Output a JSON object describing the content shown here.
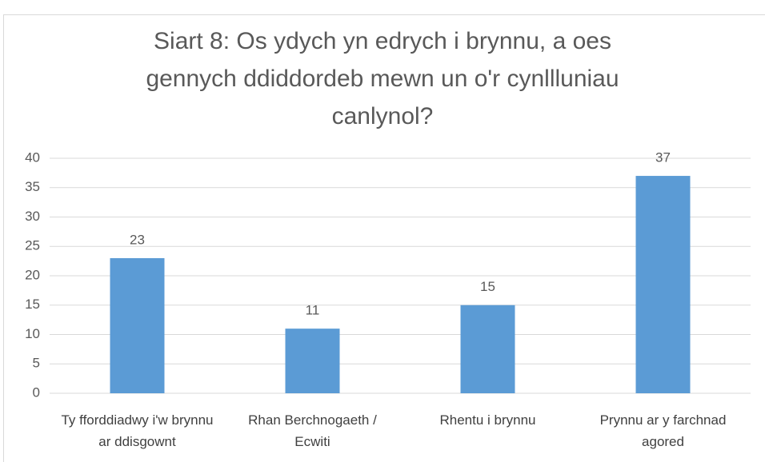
{
  "chart_data": {
    "type": "bar",
    "title": "Siart 8: Os ydych yn edrych i brynnu, a oes gennych ddiddordeb mewn un o'r cynllluniau canlynol?",
    "categories": [
      "Ty fforddiadwy i'w brynnu ar ddisgownt",
      "Rhan Berchnogaeth / Ecwiti",
      "Rhentu i brynnu",
      "Prynnu ar y farchnad agored"
    ],
    "values": [
      23,
      11,
      15,
      37
    ],
    "color": "#5b9bd5",
    "ylim": [
      0,
      40
    ],
    "yticks": [
      0,
      5,
      10,
      15,
      20,
      25,
      30,
      35,
      40
    ],
    "grid": true
  }
}
